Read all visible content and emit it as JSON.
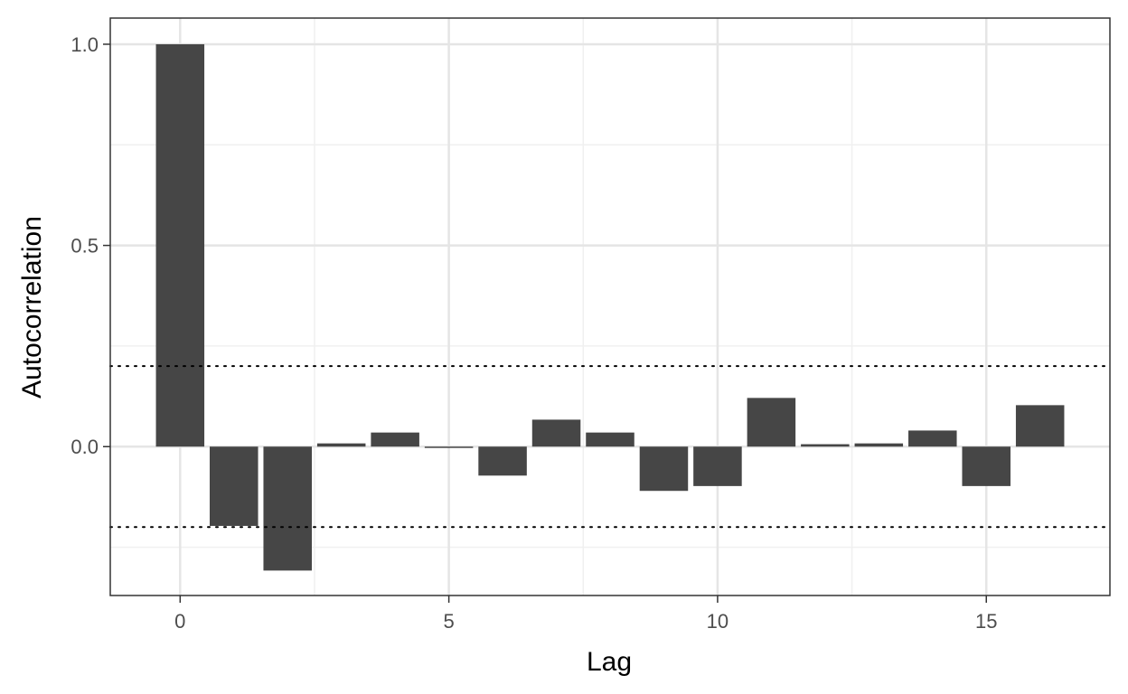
{
  "chart_data": {
    "type": "bar",
    "xlabel": "Lag",
    "ylabel": "Autocorrelation",
    "x": [
      0,
      1,
      2,
      3,
      4,
      5,
      6,
      7,
      8,
      9,
      10,
      11,
      12,
      13,
      14,
      15,
      16
    ],
    "values": [
      1.0,
      -0.197,
      -0.308,
      0.008,
      0.035,
      -0.003,
      -0.072,
      0.067,
      0.035,
      -0.11,
      -0.098,
      0.121,
      0.006,
      0.008,
      0.04,
      -0.098,
      0.103
    ],
    "xlim": [
      -1.3,
      17.3
    ],
    "ylim": [
      -0.37,
      1.065
    ],
    "x_ticks": [
      0,
      5,
      10,
      15
    ],
    "x_tick_labels": [
      "0",
      "5",
      "10",
      "15"
    ],
    "y_ticks": [
      0.0,
      0.5,
      1.0
    ],
    "y_tick_labels": [
      "0.0",
      "0.5",
      "1.0"
    ],
    "confidence_bounds": [
      0.2,
      -0.2
    ],
    "grid": true,
    "colors": {
      "bar": "#464646",
      "grid_major": "#e5e5e5",
      "grid_minor": "#f0f0f0",
      "panel_border": "#333333",
      "bound_line": "#000000"
    }
  }
}
